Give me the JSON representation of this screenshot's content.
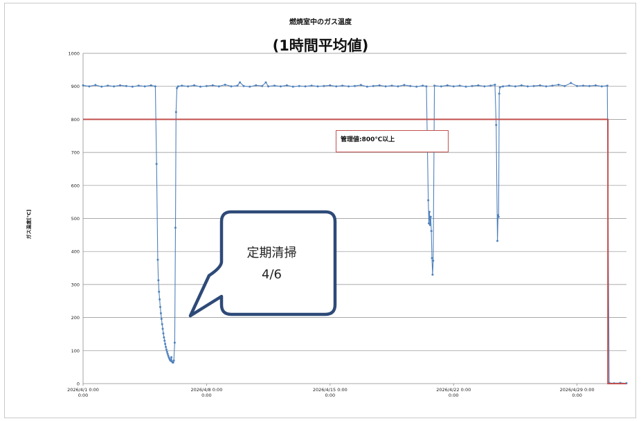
{
  "chart_data": {
    "type": "line",
    "title": "燃焼室中のガス温度",
    "subtitle": "(1時間平均値)",
    "ylabel": "ガス温度[℃]",
    "xlabel": "",
    "ylim": [
      0,
      1000
    ],
    "xlim_days": [
      0,
      44
    ],
    "yticks": [
      "0",
      "100",
      "200",
      "300",
      "400",
      "500",
      "600",
      "700",
      "800",
      "900",
      "1000"
    ],
    "xticks": [
      {
        "line1": "2026/4/1 0:00",
        "line2": "0:00",
        "day": 0
      },
      {
        "line1": "2026/4/8 0:00",
        "line2": "0:00",
        "day": 10
      },
      {
        "line1": "2026/4/15 0:00",
        "line2": "0:00",
        "day": 20
      },
      {
        "line1": "2026/4/22 0:00",
        "line2": "0:00",
        "day": 30
      },
      {
        "line1": "2026/4/29 0:00",
        "line2": "0:00",
        "day": 40
      }
    ],
    "grid": true,
    "series": [
      {
        "name": "",
        "color": "#4f81bd",
        "points": [
          [
            0,
            903
          ],
          [
            0.5,
            900
          ],
          [
            1,
            904
          ],
          [
            1.5,
            899
          ],
          [
            2,
            902
          ],
          [
            2.5,
            900
          ],
          [
            3,
            903
          ],
          [
            3.5,
            901
          ],
          [
            4,
            899
          ],
          [
            4.5,
            902
          ],
          [
            5,
            900
          ],
          [
            5.5,
            903
          ],
          [
            5.85,
            900
          ],
          [
            5.95,
            665
          ],
          [
            6.05,
            375
          ],
          [
            6.1,
            313
          ],
          [
            6.15,
            278
          ],
          [
            6.2,
            255
          ],
          [
            6.25,
            232
          ],
          [
            6.3,
            213
          ],
          [
            6.35,
            196
          ],
          [
            6.4,
            180
          ],
          [
            6.45,
            166
          ],
          [
            6.5,
            152
          ],
          [
            6.55,
            140
          ],
          [
            6.6,
            130
          ],
          [
            6.65,
            120
          ],
          [
            6.7,
            111
          ],
          [
            6.75,
            103
          ],
          [
            6.8,
            96
          ],
          [
            6.85,
            90
          ],
          [
            6.9,
            84
          ],
          [
            6.95,
            79
          ],
          [
            7.0,
            75
          ],
          [
            7.05,
            71
          ],
          [
            7.1,
            69
          ],
          [
            7.15,
            80
          ],
          [
            7.2,
            67
          ],
          [
            7.25,
            64
          ],
          [
            7.3,
            64
          ],
          [
            7.35,
            70
          ],
          [
            7.42,
            124
          ],
          [
            7.48,
            472
          ],
          [
            7.53,
            822
          ],
          [
            7.6,
            895
          ],
          [
            7.7,
            900
          ],
          [
            8,
            902
          ],
          [
            8.5,
            900
          ],
          [
            9,
            903
          ],
          [
            9.5,
            899
          ],
          [
            10,
            901
          ],
          [
            10.5,
            903
          ],
          [
            11,
            900
          ],
          [
            11.5,
            905
          ],
          [
            12,
            900
          ],
          [
            12.5,
            902
          ],
          [
            12.7,
            912
          ],
          [
            13,
            901
          ],
          [
            13.5,
            899
          ],
          [
            14,
            903
          ],
          [
            14.5,
            901
          ],
          [
            14.8,
            912
          ],
          [
            15,
            900
          ],
          [
            15.5,
            902
          ],
          [
            16,
            900
          ],
          [
            16.5,
            903
          ],
          [
            17,
            899
          ],
          [
            17.5,
            901
          ],
          [
            18,
            900
          ],
          [
            18.5,
            902
          ],
          [
            19,
            900
          ],
          [
            19.5,
            901
          ],
          [
            20,
            903
          ],
          [
            20.5,
            900
          ],
          [
            21,
            902
          ],
          [
            21.5,
            900
          ],
          [
            22,
            901
          ],
          [
            22.5,
            904
          ],
          [
            23,
            899
          ],
          [
            23.5,
            901
          ],
          [
            24,
            903
          ],
          [
            24.5,
            900
          ],
          [
            25,
            902
          ],
          [
            25.5,
            900
          ],
          [
            26,
            904
          ],
          [
            26.5,
            901
          ],
          [
            27,
            899
          ],
          [
            27.5,
            902
          ],
          [
            27.8,
            900
          ],
          [
            27.95,
            555
          ],
          [
            28.0,
            485
          ],
          [
            28.05,
            520
          ],
          [
            28.1,
            480
          ],
          [
            28.15,
            505
          ],
          [
            28.2,
            462
          ],
          [
            28.25,
            380
          ],
          [
            28.3,
            330
          ],
          [
            28.35,
            372
          ],
          [
            28.45,
            902
          ],
          [
            29,
            900
          ],
          [
            29.5,
            903
          ],
          [
            30,
            900
          ],
          [
            30.5,
            902
          ],
          [
            31,
            899
          ],
          [
            31.5,
            901
          ],
          [
            32,
            903
          ],
          [
            32.5,
            900
          ],
          [
            33,
            902
          ],
          [
            33.35,
            905
          ],
          [
            33.45,
            783
          ],
          [
            33.55,
            432
          ],
          [
            33.6,
            510
          ],
          [
            33.65,
            505
          ],
          [
            33.7,
            878
          ],
          [
            33.75,
            897
          ],
          [
            34,
            900
          ],
          [
            34.5,
            902
          ],
          [
            35,
            900
          ],
          [
            35.5,
            903
          ],
          [
            36,
            900
          ],
          [
            36.5,
            901
          ],
          [
            37,
            903
          ],
          [
            37.5,
            900
          ],
          [
            38,
            902
          ],
          [
            38.5,
            905
          ],
          [
            39,
            901
          ],
          [
            39.5,
            910
          ],
          [
            40,
            901
          ],
          [
            40.5,
            902
          ],
          [
            41,
            901
          ],
          [
            41.5,
            903
          ],
          [
            42,
            900
          ],
          [
            42.45,
            902
          ],
          [
            42.6,
            2
          ],
          [
            43,
            1
          ],
          [
            43.5,
            2
          ],
          [
            44,
            1
          ]
        ]
      },
      {
        "name": "",
        "color": "#c0504d",
        "points": [
          [
            0,
            800
          ],
          [
            42.5,
            800
          ],
          [
            42.5,
            0
          ],
          [
            44,
            0
          ]
        ]
      }
    ],
    "annotations": {
      "limit_label": "管理値:800℃以上",
      "callout_line1": "定期清掃",
      "callout_line2": "4/6"
    }
  }
}
